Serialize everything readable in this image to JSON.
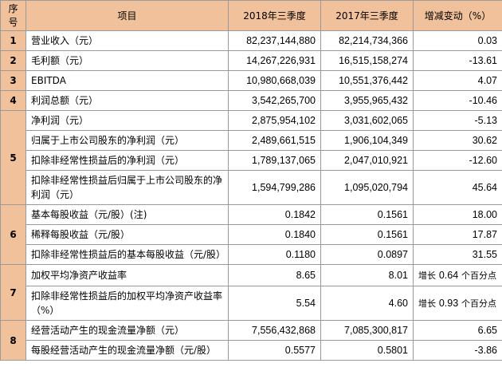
{
  "table": {
    "headers": [
      "序号",
      "项目",
      "2018年三季度",
      "2017年三季度",
      "增减变动（%）"
    ],
    "groups": [
      {
        "seq": "1",
        "rows": [
          {
            "item": "营业收入（元）",
            "y2018": "82,237,144,880",
            "y2017": "82,214,734,366",
            "change": "0.03"
          }
        ]
      },
      {
        "seq": "2",
        "rows": [
          {
            "item": "毛利额（元）",
            "y2018": "14,267,226,931",
            "y2017": "16,515,158,274",
            "change": "-13.61"
          }
        ]
      },
      {
        "seq": "3",
        "rows": [
          {
            "item": "EBITDA",
            "y2018": "10,980,668,039",
            "y2017": "10,551,376,442",
            "change": "4.07"
          }
        ]
      },
      {
        "seq": "4",
        "rows": [
          {
            "item": "利润总额（元）",
            "y2018": "3,542,265,700",
            "y2017": "3,955,965,432",
            "change": "-10.46"
          }
        ]
      },
      {
        "seq": "5",
        "rows": [
          {
            "item": "净利润（元）",
            "y2018": "2,875,954,102",
            "y2017": "3,031,602,065",
            "change": "-5.13"
          },
          {
            "item": "归属于上市公司股东的净利润（元）",
            "y2018": "2,489,661,515",
            "y2017": "1,906,104,349",
            "change": "30.62"
          },
          {
            "item": "扣除非经常性损益后的净利润（元）",
            "y2018": "1,789,137,065",
            "y2017": "2,047,010,921",
            "change": "-12.60"
          },
          {
            "item": "扣除非经常性损益后归属于上市公司股东的净利润（元）",
            "y2018": "1,594,799,286",
            "y2017": "1,095,020,794",
            "change": "45.64"
          }
        ]
      },
      {
        "seq": "6",
        "rows": [
          {
            "item": "基本每股收益（元/股）(注)",
            "y2018": "0.1842",
            "y2017": "0.1561",
            "change": "18.00"
          },
          {
            "item": "稀释每股收益（元/股）",
            "y2018": "0.1840",
            "y2017": "0.1561",
            "change": "17.87"
          },
          {
            "item": "扣除非经常性损益后的基本每股收益（元/股）",
            "y2018": "0.1180",
            "y2017": "0.0897",
            "change": "31.55"
          }
        ]
      },
      {
        "seq": "7",
        "rows": [
          {
            "item": "加权平均净资产收益率",
            "y2018": "8.65",
            "y2017": "8.01",
            "change_prefix": "增长",
            "change_value": "0.64",
            "change_suffix": "个百分点"
          },
          {
            "item": "扣除非经常性损益后的加权平均净资产收益率（%）",
            "y2018": "5.54",
            "y2017": "4.60",
            "change_prefix": "增长",
            "change_value": "0.93",
            "change_suffix": "个百分点"
          }
        ]
      },
      {
        "seq": "8",
        "rows": [
          {
            "item": "经营活动产生的现金流量净额（元）",
            "y2018": "7,556,432,868",
            "y2017": "7,085,300,817",
            "change": "6.65"
          },
          {
            "item": "每股经营活动产生的现金流量净额（元/股）",
            "y2018": "0.5577",
            "y2017": "0.5801",
            "change": "-3.86"
          }
        ]
      }
    ]
  }
}
